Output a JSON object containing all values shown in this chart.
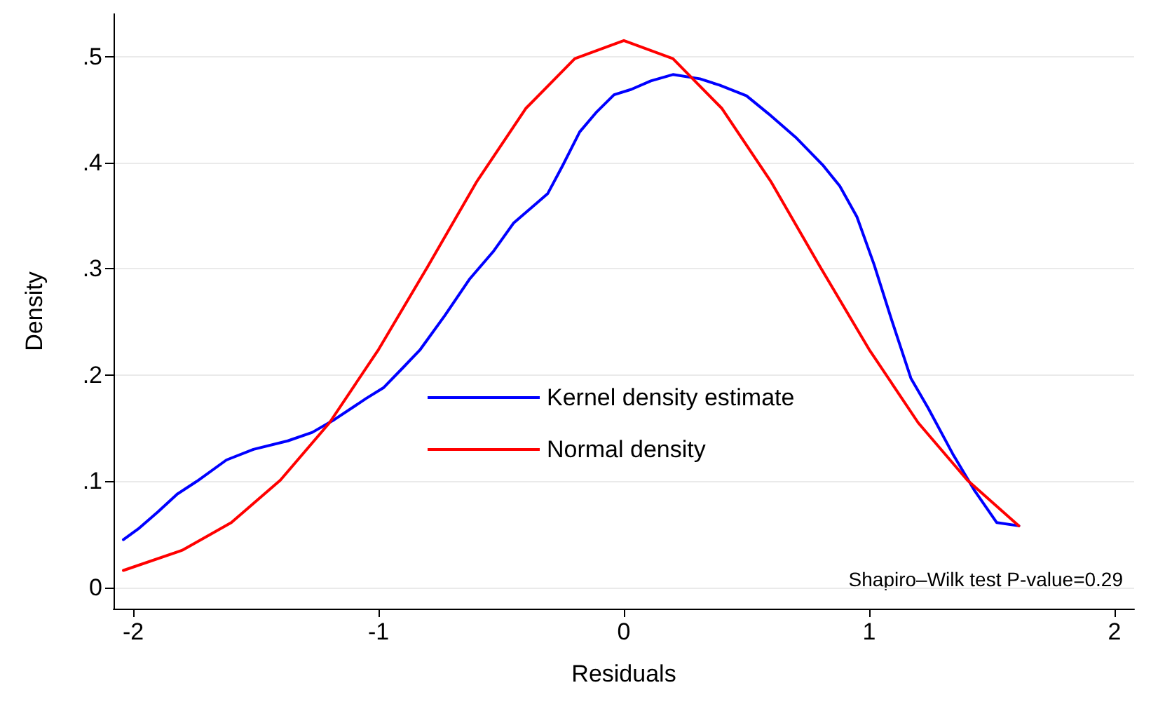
{
  "chart_data": {
    "type": "line",
    "xlabel": "Residuals",
    "ylabel": "Density",
    "xlim": [
      -2.08,
      2.08
    ],
    "ylim": [
      -0.02,
      0.54
    ],
    "xticks": [
      -2,
      -1,
      0,
      1,
      2
    ],
    "yticks": [
      0,
      {
        "value": 0.1,
        "label": ".1"
      },
      {
        "value": 0.2,
        "label": ".2"
      },
      {
        "value": 0.3,
        "label": ".3"
      },
      {
        "value": 0.4,
        "label": ".4"
      },
      {
        "value": 0.5,
        "label": ".5"
      }
    ],
    "grid": "y",
    "legend": "center",
    "marker": "none",
    "line_style": "solid",
    "annotations": [
      "Shapiro–Wilk test P-value=0.29"
    ],
    "series": [
      {
        "name": "Kernel density estimate",
        "color": "#0000ff",
        "x": [
          -2.04,
          -1.98,
          -1.9,
          -1.82,
          -1.74,
          -1.62,
          -1.51,
          -1.37,
          -1.27,
          -1.18,
          -1.05,
          -0.98,
          -0.9,
          -0.83,
          -0.73,
          -0.63,
          -0.53,
          -0.45,
          -0.31,
          -0.25,
          -0.18,
          -0.11,
          -0.04,
          0.03,
          0.11,
          0.2,
          0.31,
          0.39,
          0.5,
          0.59,
          0.7,
          0.81,
          0.88,
          0.95,
          1.02,
          1.09,
          1.17,
          1.24,
          1.34,
          1.43,
          1.52,
          1.61
        ],
        "values": [
          0.045,
          0.055,
          0.071,
          0.088,
          0.1,
          0.12,
          0.13,
          0.138,
          0.146,
          0.158,
          0.178,
          0.188,
          0.207,
          0.224,
          0.256,
          0.29,
          0.317,
          0.343,
          0.371,
          0.397,
          0.429,
          0.448,
          0.464,
          0.469,
          0.477,
          0.483,
          0.479,
          0.473,
          0.463,
          0.446,
          0.424,
          0.398,
          0.378,
          0.349,
          0.304,
          0.253,
          0.197,
          0.169,
          0.126,
          0.091,
          0.061,
          0.058
        ]
      },
      {
        "name": "Normal density",
        "color": "#ff0000",
        "x": [
          -2.04,
          -1.8,
          -1.6,
          -1.4,
          -1.2,
          -1.0,
          -0.8,
          -0.6,
          -0.4,
          -0.2,
          0,
          0.2,
          0.4,
          0.6,
          0.8,
          1.0,
          1.2,
          1.4,
          1.61
        ],
        "values": [
          0.016,
          0.035,
          0.061,
          0.101,
          0.155,
          0.224,
          0.302,
          0.382,
          0.451,
          0.498,
          0.515,
          0.498,
          0.451,
          0.382,
          0.302,
          0.224,
          0.155,
          0.101,
          0.058
        ]
      }
    ]
  }
}
